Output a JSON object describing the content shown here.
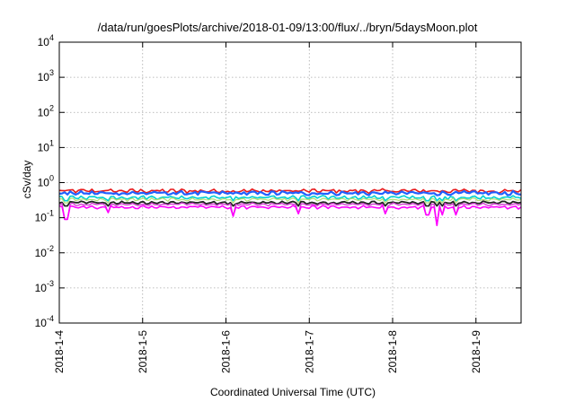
{
  "chart_data": {
    "type": "line",
    "title": "/data/run/goesPlots/archive/2018-01-09/13:00/flux/../bryn/5daysMoon.plot",
    "xlabel": "Coordinated Universal Time (UTC)",
    "ylabel": "cSv/day",
    "yscale": "log",
    "ylim": [
      0.0001,
      10000
    ],
    "y_ticks": [
      {
        "base": "10",
        "exp": "-4",
        "value": 0.0001
      },
      {
        "base": "10",
        "exp": "-3",
        "value": 0.001
      },
      {
        "base": "10",
        "exp": "-2",
        "value": 0.01
      },
      {
        "base": "10",
        "exp": "-1",
        "value": 0.1
      },
      {
        "base": "10",
        "exp": "0",
        "value": 1
      },
      {
        "base": "10",
        "exp": "1",
        "value": 10
      },
      {
        "base": "10",
        "exp": "2",
        "value": 100
      },
      {
        "base": "10",
        "exp": "3",
        "value": 1000
      },
      {
        "base": "10",
        "exp": "4",
        "value": 10000
      }
    ],
    "xlim": [
      "2018-01-04T00:00",
      "2018-01-09T13:00"
    ],
    "x_ticks": [
      {
        "label": "2018-1-4",
        "date": "2018-01-04T00:00"
      },
      {
        "label": "2018-1-5",
        "date": "2018-01-05T00:00"
      },
      {
        "label": "2018-1-6",
        "date": "2018-01-06T00:00"
      },
      {
        "label": "2018-1-7",
        "date": "2018-01-07T00:00"
      },
      {
        "label": "2018-1-8",
        "date": "2018-01-08T00:00"
      },
      {
        "label": "2018-1-9",
        "date": "2018-01-09T00:00"
      }
    ],
    "grid": true,
    "legend": "none",
    "series": [
      {
        "color": "#e8191c",
        "level": 0.58,
        "jitter": 0.2,
        "width": 1.6
      },
      {
        "color": "#2060ff",
        "level": 0.5,
        "jitter": 0.2,
        "width": 2.2
      },
      {
        "color": "#00d0d0",
        "level": 0.38,
        "jitter": 0.15,
        "width": 1.6
      },
      {
        "color": "#b0e070",
        "level": 0.33,
        "jitter": 0.12,
        "width": 1.2
      },
      {
        "color": "#222222",
        "level": 0.27,
        "jitter": 0.1,
        "width": 1.8
      },
      {
        "color": "#d040d0",
        "level": 0.24,
        "jitter": 0.1,
        "width": 1.4
      },
      {
        "color": "#ff00ff",
        "level": 0.2,
        "jitter": 0.12,
        "width": 1.6
      }
    ],
    "dips": [
      {
        "date": "2018-01-04T02:00",
        "value": 0.09
      },
      {
        "date": "2018-01-04T14:00",
        "value": 0.14
      },
      {
        "date": "2018-01-06T02:00",
        "value": 0.11
      },
      {
        "date": "2018-01-06T21:00",
        "value": 0.13
      },
      {
        "date": "2018-01-07T22:00",
        "value": 0.13
      },
      {
        "date": "2018-01-08T10:00",
        "value": 0.12
      },
      {
        "date": "2018-01-08T18:00",
        "value": 0.12
      },
      {
        "date": "2018-01-08T13:00",
        "value": 0.06
      },
      {
        "date": "2018-01-08T14:30",
        "value": 0.12
      }
    ]
  }
}
